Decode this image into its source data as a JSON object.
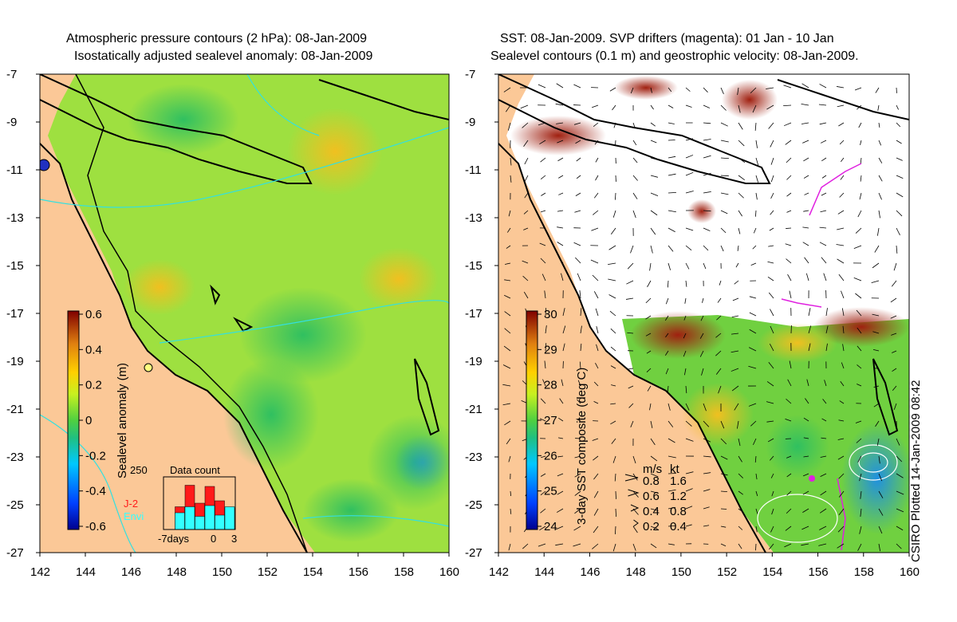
{
  "left_panel": {
    "title_line1": "Atmospheric pressure contours (2 hPa): 08-Jan-2009",
    "title_line2": "Isostatically adjusted sealevel anomaly: 08-Jan-2009",
    "colorbar": {
      "label": "Sealevel anomaly (m)",
      "ticks": [
        "0.6",
        "0.4",
        "0.2",
        "0",
        "-0.2",
        "-0.4",
        "-0.6"
      ]
    },
    "inset": {
      "title": "Data count",
      "ymax_label": "250",
      "x_labels": [
        "-7days",
        "0",
        "3"
      ],
      "legend": [
        {
          "label": "J-2",
          "color": "#ff1a1a"
        },
        {
          "label": "Envi",
          "color": "#33ffff"
        }
      ],
      "bars_j2": [
        0,
        95,
        185,
        110,
        180,
        120,
        90
      ],
      "bars_envi": [
        0,
        70,
        95,
        55,
        100,
        60,
        95
      ]
    }
  },
  "right_panel": {
    "title_line1": "SST: 08-Jan-2009. SVP drifters (magenta): 01 Jan - 10 Jan",
    "title_line2": "Sealevel contours (0.1 m) and geostrophic velocity: 08-Jan-2009.",
    "colorbar": {
      "label": "3-day SST composite (deg C)",
      "ticks": [
        "30",
        "29",
        "28",
        "27",
        "26",
        "25",
        "24"
      ]
    },
    "velocity_legend": {
      "header_ms": "m/s",
      "header_kt": "kt",
      "rows": [
        {
          "ms": "0.8",
          "kt": "1.6"
        },
        {
          "ms": "0.6",
          "kt": "1.2"
        },
        {
          "ms": "0.4",
          "kt": "0.8"
        },
        {
          "ms": "0.2",
          "kt": "0.4"
        }
      ]
    }
  },
  "axes": {
    "lat_ticks": [
      "-7",
      "-9",
      "-11",
      "-13",
      "-15",
      "-17",
      "-19",
      "-21",
      "-23",
      "-25",
      "-27"
    ],
    "lon_ticks": [
      "142",
      "144",
      "146",
      "148",
      "150",
      "152",
      "154",
      "156",
      "158",
      "160"
    ]
  },
  "credit": "CSIRO Plotted 14-Jan-2009 08:42",
  "colors": {
    "land": "#fbc897",
    "ocean_green": "#88e040",
    "coast": "#000000"
  }
}
